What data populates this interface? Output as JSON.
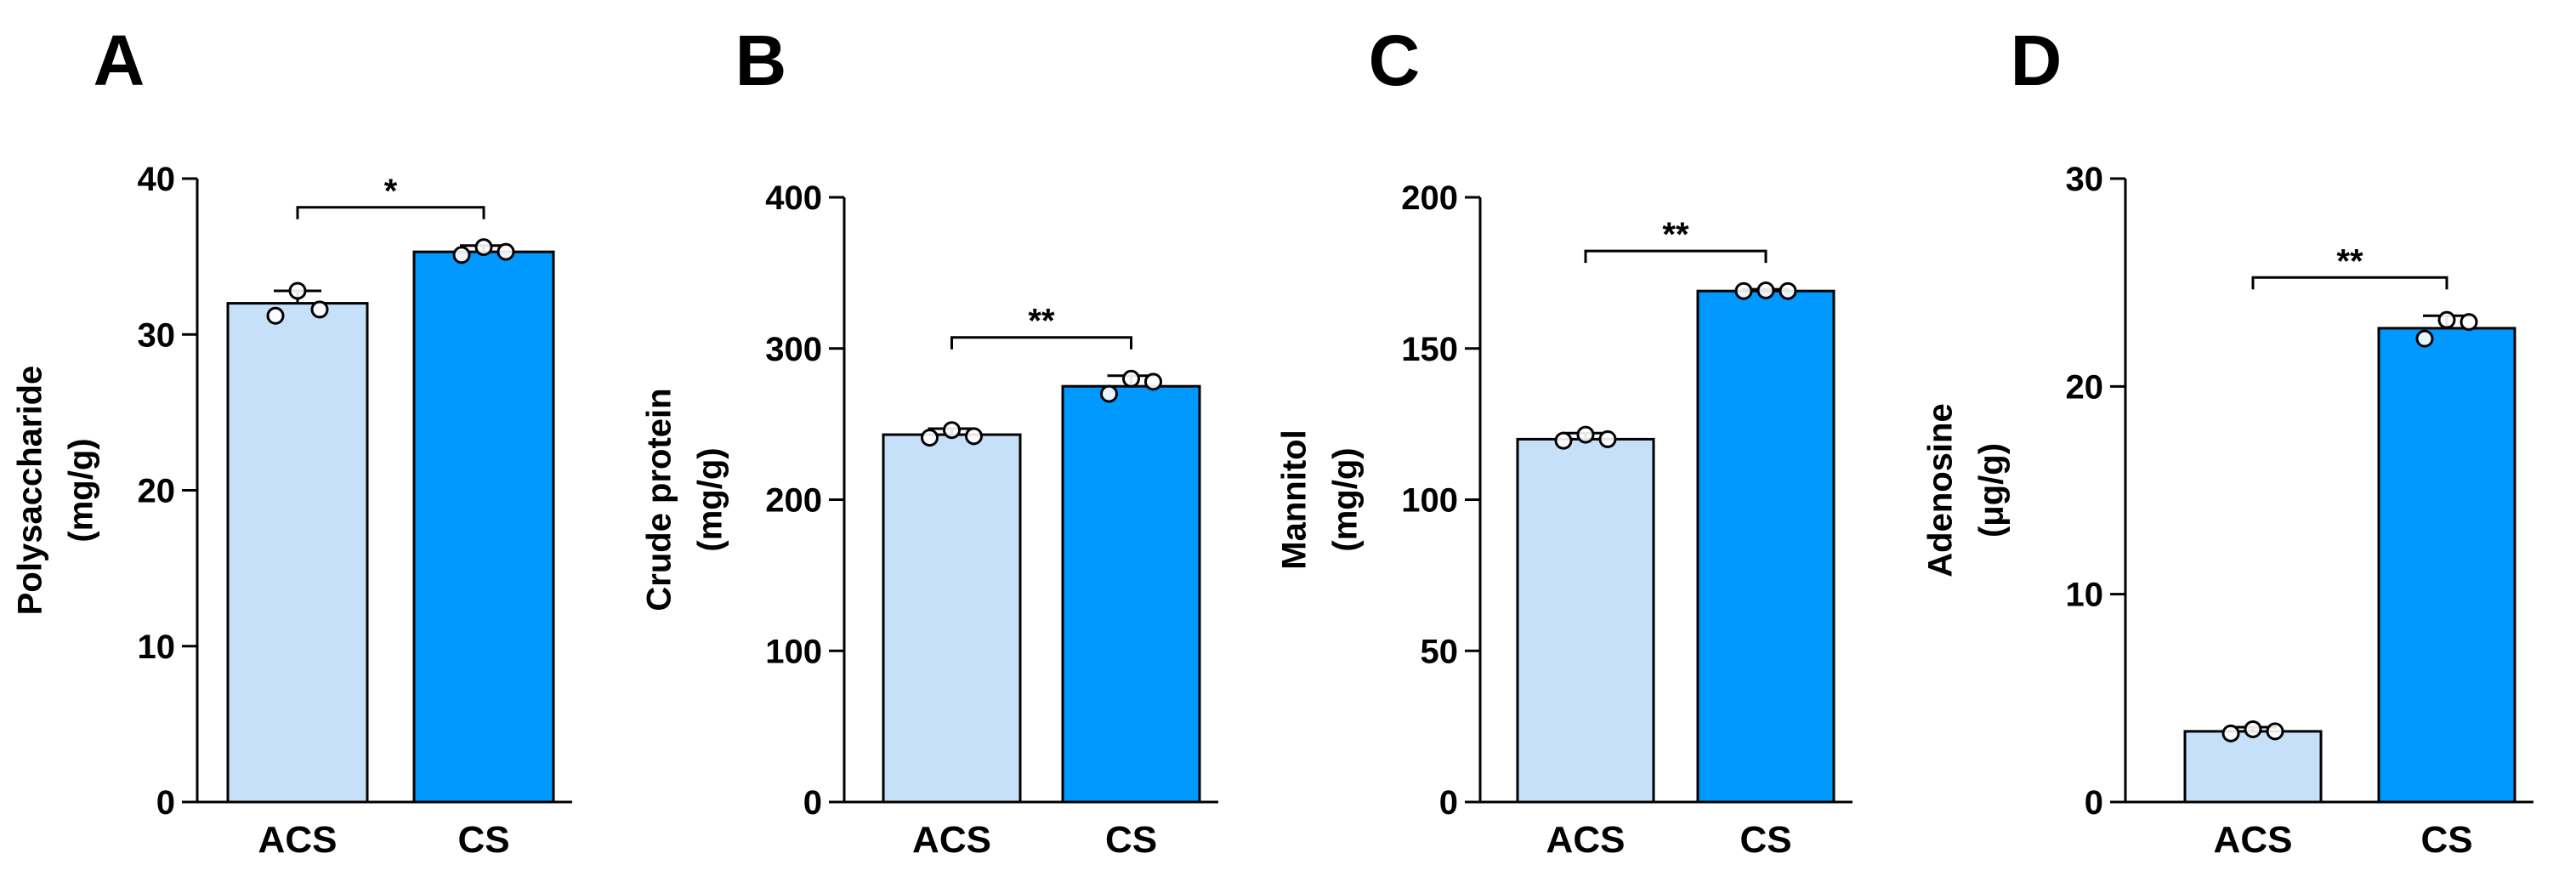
{
  "figure": {
    "panel_letters": [
      "A",
      "B",
      "C",
      "D"
    ]
  },
  "colors": {
    "acs_fill": "#c5e0f8",
    "cs_fill": "#0099ff",
    "stroke": "#000000"
  },
  "chart_data": [
    {
      "panel": "A",
      "type": "bar",
      "categories": [
        "ACS",
        "CS"
      ],
      "values": [
        32.0,
        35.3
      ],
      "errors": [
        0.8,
        0.4
      ],
      "points": [
        [
          31.2,
          32.8,
          31.6
        ],
        [
          35.1,
          35.6,
          35.3
        ]
      ],
      "ylabel_line1": "Polysaccharide",
      "ylabel_line2": "(mg/g)",
      "ylim": [
        0,
        40
      ],
      "yticks": [
        0,
        10,
        20,
        30,
        40
      ],
      "significance": "*"
    },
    {
      "panel": "B",
      "type": "bar",
      "categories": [
        "ACS",
        "CS"
      ],
      "values": [
        243,
        275
      ],
      "errors": [
        4,
        7
      ],
      "points": [
        [
          241,
          246,
          242
        ],
        [
          270,
          280,
          278
        ]
      ],
      "ylabel_line1": "Crude protein",
      "ylabel_line2": "(mg/g)",
      "ylim": [
        0,
        400
      ],
      "yticks": [
        0,
        100,
        200,
        300,
        400
      ],
      "significance": "**"
    },
    {
      "panel": "C",
      "type": "bar",
      "categories": [
        "ACS",
        "CS"
      ],
      "values": [
        120,
        169
      ],
      "errors": [
        2,
        0.6
      ],
      "points": [
        [
          119.5,
          121.5,
          120
        ],
        [
          169,
          169.2,
          169
        ]
      ],
      "ylabel_line1": "Mannitol",
      "ylabel_line2": "(mg/g)",
      "ylim": [
        0,
        200
      ],
      "yticks": [
        0,
        50,
        100,
        150,
        200
      ],
      "significance": "**"
    },
    {
      "panel": "D",
      "type": "bar",
      "categories": [
        "ACS",
        "CS"
      ],
      "values": [
        3.4,
        22.8
      ],
      "errors": [
        0.2,
        0.6
      ],
      "points": [
        [
          3.3,
          3.5,
          3.4
        ],
        [
          22.3,
          23.2,
          23.1
        ]
      ],
      "ylabel_line1": "Adenosine",
      "ylabel_line2": "(μg/g)",
      "ylim": [
        0,
        30
      ],
      "yticks": [
        0,
        10,
        20,
        30
      ],
      "significance": "**"
    }
  ]
}
